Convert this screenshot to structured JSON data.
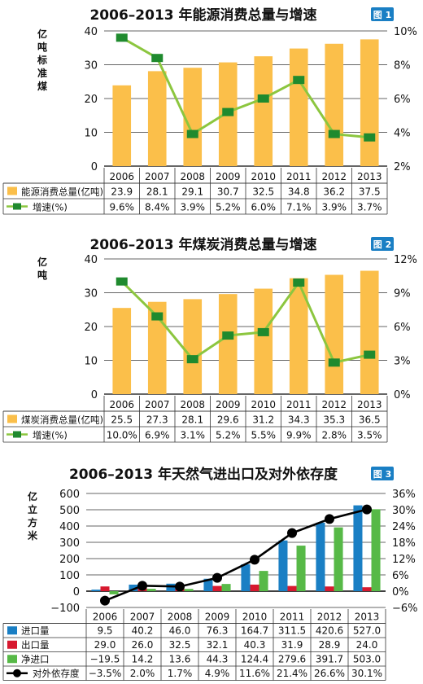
{
  "chart_data": [
    {
      "type": "bar+line",
      "title": "2006–2013 年能源消费总量与增速",
      "badge": "图 1",
      "ylabel_left": "亿吨标准煤",
      "categories": [
        "2006",
        "2007",
        "2008",
        "2009",
        "2010",
        "2011",
        "2012",
        "2013"
      ],
      "ylim_left": [
        0,
        40
      ],
      "yticks_left": [
        "0",
        "10",
        "20",
        "30",
        "40"
      ],
      "ylim_right": [
        2,
        10
      ],
      "yticks_right": [
        "2%",
        "4%",
        "6%",
        "8%",
        "10%"
      ],
      "series": [
        {
          "name": "能源消费总量(亿吨)",
          "kind": "bar",
          "axis": "left",
          "color": "#fbbf4a",
          "values": [
            23.9,
            28.1,
            29.1,
            30.7,
            32.5,
            34.8,
            36.2,
            37.5
          ],
          "labels": [
            "23.9",
            "28.1",
            "29.1",
            "30.7",
            "32.5",
            "34.8",
            "36.2",
            "37.5"
          ]
        },
        {
          "name": "增速(%)",
          "kind": "line",
          "axis": "right",
          "color": "#8cc63f",
          "marker_color": "#1f8a2e",
          "values": [
            9.6,
            8.4,
            3.9,
            5.2,
            6.0,
            7.1,
            3.9,
            3.7
          ],
          "labels": [
            "9.6%",
            "8.4%",
            "3.9%",
            "5.2%",
            "6.0%",
            "7.1%",
            "3.9%",
            "3.7%"
          ]
        }
      ]
    },
    {
      "type": "bar+line",
      "title": "2006–2013 年煤炭消费总量与增速",
      "badge": "图 2",
      "ylabel_left": "亿吨",
      "categories": [
        "2006",
        "2007",
        "2008",
        "2009",
        "2010",
        "2011",
        "2012",
        "2013"
      ],
      "ylim_left": [
        0,
        40
      ],
      "yticks_left": [
        "0",
        "10",
        "20",
        "30",
        "40"
      ],
      "ylim_right": [
        0,
        12
      ],
      "yticks_right": [
        "0%",
        "3%",
        "6%",
        "9%",
        "12%"
      ],
      "series": [
        {
          "name": "煤炭消费总量(亿吨)",
          "kind": "bar",
          "axis": "left",
          "color": "#fbbf4a",
          "values": [
            25.5,
            27.3,
            28.1,
            29.6,
            31.2,
            34.3,
            35.3,
            36.5
          ],
          "labels": [
            "25.5",
            "27.3",
            "28.1",
            "29.6",
            "31.2",
            "34.3",
            "35.3",
            "36.5"
          ]
        },
        {
          "name": "增速(%)",
          "kind": "line",
          "axis": "right",
          "color": "#8cc63f",
          "marker_color": "#1f8a2e",
          "values": [
            10.0,
            6.9,
            3.1,
            5.2,
            5.5,
            9.9,
            2.8,
            3.5
          ],
          "labels": [
            "10.0%",
            "6.9%",
            "3.1%",
            "5.2%",
            "5.5%",
            "9.9%",
            "2.8%",
            "3.5%"
          ]
        }
      ]
    },
    {
      "type": "bar+line",
      "title": "2006–2013 年天然气进出口及对外依存度",
      "badge": "图 3",
      "ylabel_left": "亿立方米",
      "categories": [
        "2006",
        "2007",
        "2008",
        "2009",
        "2010",
        "2011",
        "2012",
        "2013"
      ],
      "ylim_left": [
        -100,
        600
      ],
      "yticks_left": [
        "−100",
        "0",
        "100",
        "200",
        "300",
        "400",
        "500",
        "600"
      ],
      "ylim_right": [
        -6,
        36
      ],
      "yticks_right": [
        "−6%",
        "0%",
        "6%",
        "12%",
        "18%",
        "24%",
        "30%",
        "36%"
      ],
      "series": [
        {
          "name": "进口量",
          "kind": "bar",
          "axis": "left",
          "color": "#1a7fc4",
          "values": [
            9.5,
            40.2,
            46.0,
            76.3,
            164.7,
            311.5,
            420.6,
            527.0
          ],
          "labels": [
            "9.5",
            "40.2",
            "46.0",
            "76.3",
            "164.7",
            "311.5",
            "420.6",
            "527.0"
          ]
        },
        {
          "name": "出口量",
          "kind": "bar",
          "axis": "left",
          "color": "#d7192f",
          "values": [
            29.0,
            26.0,
            32.5,
            32.1,
            40.3,
            31.9,
            28.9,
            24.0
          ],
          "labels": [
            "29.0",
            "26.0",
            "32.5",
            "32.1",
            "40.3",
            "31.9",
            "28.9",
            "24.0"
          ]
        },
        {
          "name": "净进口",
          "kind": "bar",
          "axis": "left",
          "color": "#57b947",
          "values": [
            -19.5,
            14.2,
            13.6,
            44.3,
            124.4,
            279.6,
            391.7,
            503.0
          ],
          "labels": [
            "−19.5",
            "14.2",
            "13.6",
            "44.3",
            "124.4",
            "279.6",
            "391.7",
            "503.0"
          ]
        },
        {
          "name": "对外依存度",
          "kind": "line",
          "axis": "right",
          "color": "#000000",
          "marker_color": "#000000",
          "values": [
            -3.5,
            2.0,
            1.7,
            4.9,
            11.6,
            21.4,
            26.6,
            30.1
          ],
          "labels": [
            "−3.5%",
            "2.0%",
            "1.7%",
            "4.9%",
            "11.6%",
            "21.4%",
            "26.6%",
            "30.1%"
          ]
        }
      ]
    }
  ]
}
